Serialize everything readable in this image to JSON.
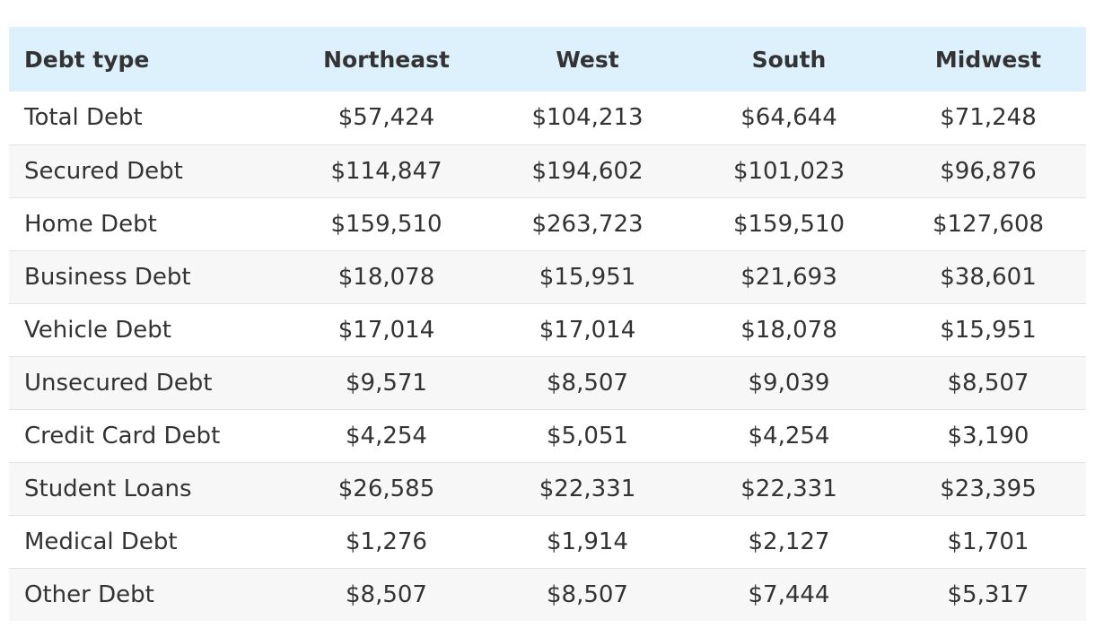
{
  "table": {
    "headers": [
      "Debt type",
      "Northeast",
      "West",
      "South",
      "Midwest"
    ],
    "rows": [
      [
        "Total Debt",
        "$57,424",
        "$104,213",
        "$64,644",
        "$71,248"
      ],
      [
        "Secured Debt",
        "$114,847",
        "$194,602",
        "$101,023",
        "$96,876"
      ],
      [
        "Home Debt",
        "$159,510",
        "$263,723",
        "$159,510",
        "$127,608"
      ],
      [
        "Business Debt",
        "$18,078",
        "$15,951",
        "$21,693",
        "$38,601"
      ],
      [
        "Vehicle Debt",
        "$17,014",
        "$17,014",
        "$18,078",
        "$15,951"
      ],
      [
        "Unsecured Debt",
        "$9,571",
        "$8,507",
        "$9,039",
        "$8,507"
      ],
      [
        "Credit Card Debt",
        "$4,254",
        "$5,051",
        "$4,254",
        "$3,190"
      ],
      [
        "Student Loans",
        "$26,585",
        "$22,331",
        "$22,331",
        "$23,395"
      ],
      [
        "Medical Debt",
        "$1,276",
        "$1,914",
        "$2,127",
        "$1,701"
      ],
      [
        "Other Debt",
        "$8,507",
        "$8,507",
        "$7,444",
        "$5,317"
      ]
    ]
  },
  "colors": {
    "header_background": "#dcf1fc",
    "row_alt_background": "#f7f7f7",
    "text": "#333333",
    "divider": "#e3e3e3"
  }
}
